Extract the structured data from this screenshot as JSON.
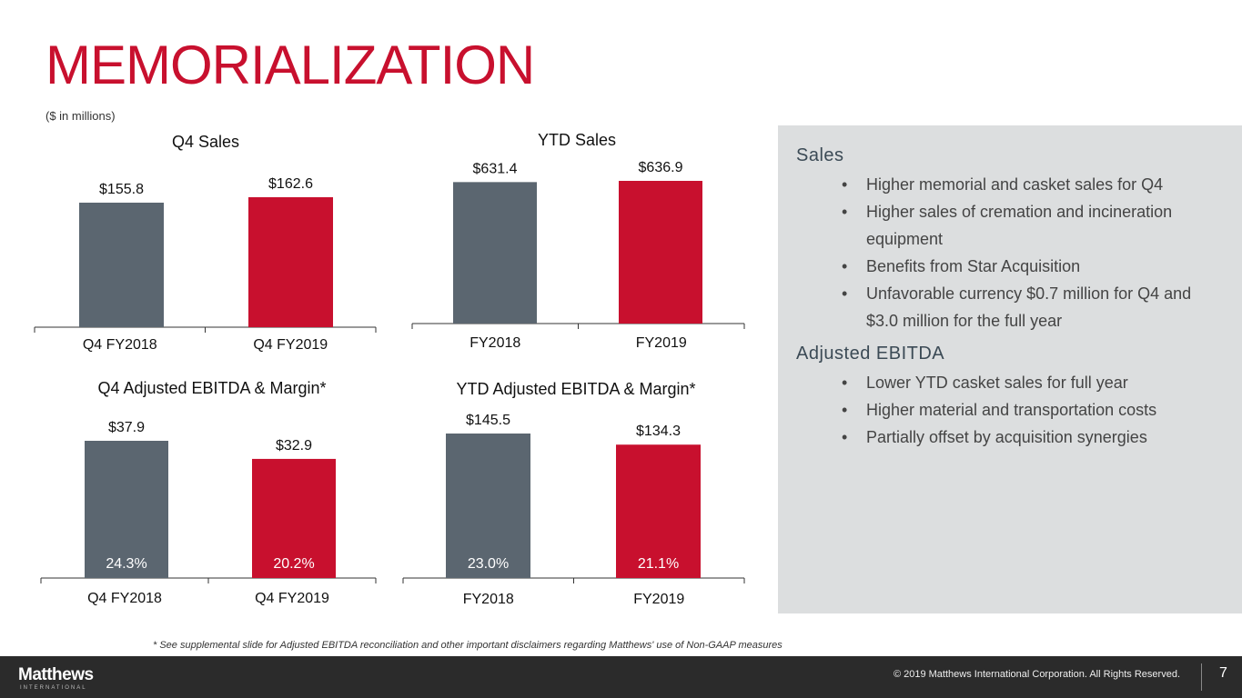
{
  "header": {
    "title": "MEMORIALIZATION",
    "units": "($ in millions)"
  },
  "colors": {
    "fy2018": "#5b6670",
    "fy2019": "#c8102e",
    "accent": "#c8102e"
  },
  "chart_data": [
    {
      "type": "bar",
      "title": "Q4 Sales",
      "categories": [
        "Q4 FY2018",
        "Q4 FY2019"
      ],
      "values": [
        155.8,
        162.6
      ],
      "value_labels": [
        "$155.8",
        "$162.6"
      ]
    },
    {
      "type": "bar",
      "title": "YTD Sales",
      "categories": [
        "FY2018",
        "FY2019"
      ],
      "values": [
        631.4,
        636.9
      ],
      "value_labels": [
        "$631.4",
        "$636.9"
      ]
    },
    {
      "type": "bar",
      "title": "Q4 Adjusted EBITDA  & Margin*",
      "categories": [
        "Q4 FY2018",
        "Q4 FY2019"
      ],
      "values": [
        37.9,
        32.9
      ],
      "value_labels": [
        "$37.9",
        "$32.9"
      ],
      "margins": [
        "24.3%",
        "20.2%"
      ]
    },
    {
      "type": "bar",
      "title": "YTD  Adjusted EBITDA  & Margin*",
      "categories": [
        "FY2018",
        "FY2019"
      ],
      "values": [
        145.5,
        134.3
      ],
      "value_labels": [
        "$145.5",
        "$134.3"
      ],
      "margins": [
        "23.0%",
        "21.1%"
      ]
    }
  ],
  "panel": {
    "sales_heading": "Sales",
    "sales_bullets": [
      "Higher memorial and casket sales for Q4",
      "Higher sales of cremation and incineration equipment",
      "Benefits from Star Acquisition",
      "Unfavorable currency $0.7 million for Q4 and $3.0 million for the full year"
    ],
    "ebitda_heading": "Adjusted EBITDA",
    "ebitda_bullets": [
      "Lower YTD casket sales for full year",
      "Higher material and transportation costs",
      "Partially offset by acquisition synergies"
    ]
  },
  "footnote": "* See supplemental slide for Adjusted EBITDA reconciliation and other important disclaimers regarding Matthews' use of Non-GAAP measures",
  "footer": {
    "logo": "Matthews",
    "logo_sub": "INTERNATIONAL",
    "copyright": "© 2019 Matthews International Corporation. All Rights Reserved.",
    "page": "7"
  }
}
